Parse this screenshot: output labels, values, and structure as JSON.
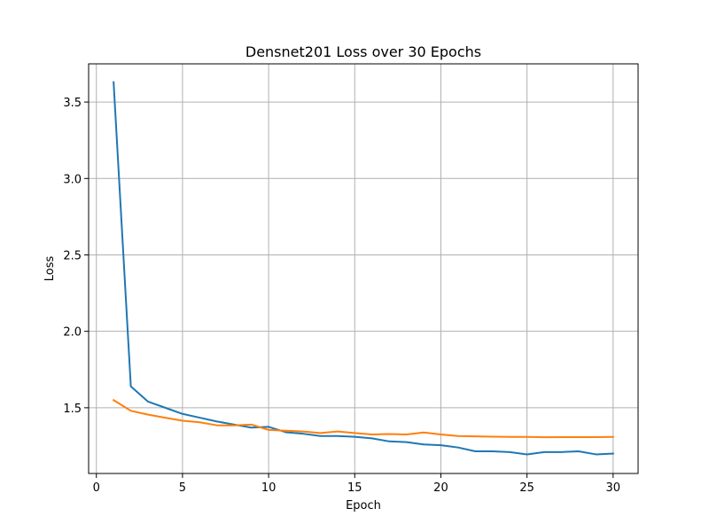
{
  "chart_data": {
    "type": "line",
    "title": "Densnet201 Loss over 30 Epochs",
    "xlabel": "Epoch",
    "ylabel": "Loss",
    "xlim": [
      -0.45,
      31.45
    ],
    "ylim": [
      1.07,
      3.75
    ],
    "xticks": [
      0,
      5,
      10,
      15,
      20,
      25,
      30
    ],
    "yticks": [
      1.5,
      2.0,
      2.5,
      3.0,
      3.5
    ],
    "xtick_labels": [
      "0",
      "5",
      "10",
      "15",
      "20",
      "25",
      "30"
    ],
    "ytick_labels": [
      "1.5",
      "2.0",
      "2.5",
      "3.0",
      "3.5"
    ],
    "grid": true,
    "legend": "none",
    "x": [
      1,
      2,
      3,
      4,
      5,
      6,
      7,
      8,
      9,
      10,
      11,
      12,
      13,
      14,
      15,
      16,
      17,
      18,
      19,
      20,
      21,
      22,
      23,
      24,
      25,
      26,
      27,
      28,
      29,
      30
    ],
    "series": [
      {
        "color": "#1f77b4",
        "values": [
          3.63,
          1.64,
          1.54,
          1.5,
          1.46,
          1.435,
          1.41,
          1.39,
          1.37,
          1.375,
          1.34,
          1.33,
          1.315,
          1.315,
          1.31,
          1.3,
          1.28,
          1.275,
          1.26,
          1.255,
          1.24,
          1.215,
          1.215,
          1.21,
          1.195,
          1.21,
          1.21,
          1.215,
          1.195,
          1.2
        ]
      },
      {
        "color": "#ff7f0e",
        "values": [
          1.55,
          1.48,
          1.455,
          1.435,
          1.415,
          1.405,
          1.385,
          1.385,
          1.39,
          1.355,
          1.35,
          1.345,
          1.335,
          1.345,
          1.335,
          1.325,
          1.328,
          1.325,
          1.338,
          1.325,
          1.315,
          1.313,
          1.311,
          1.309,
          1.309,
          1.307,
          1.308,
          1.308,
          1.308,
          1.309
        ]
      }
    ]
  }
}
